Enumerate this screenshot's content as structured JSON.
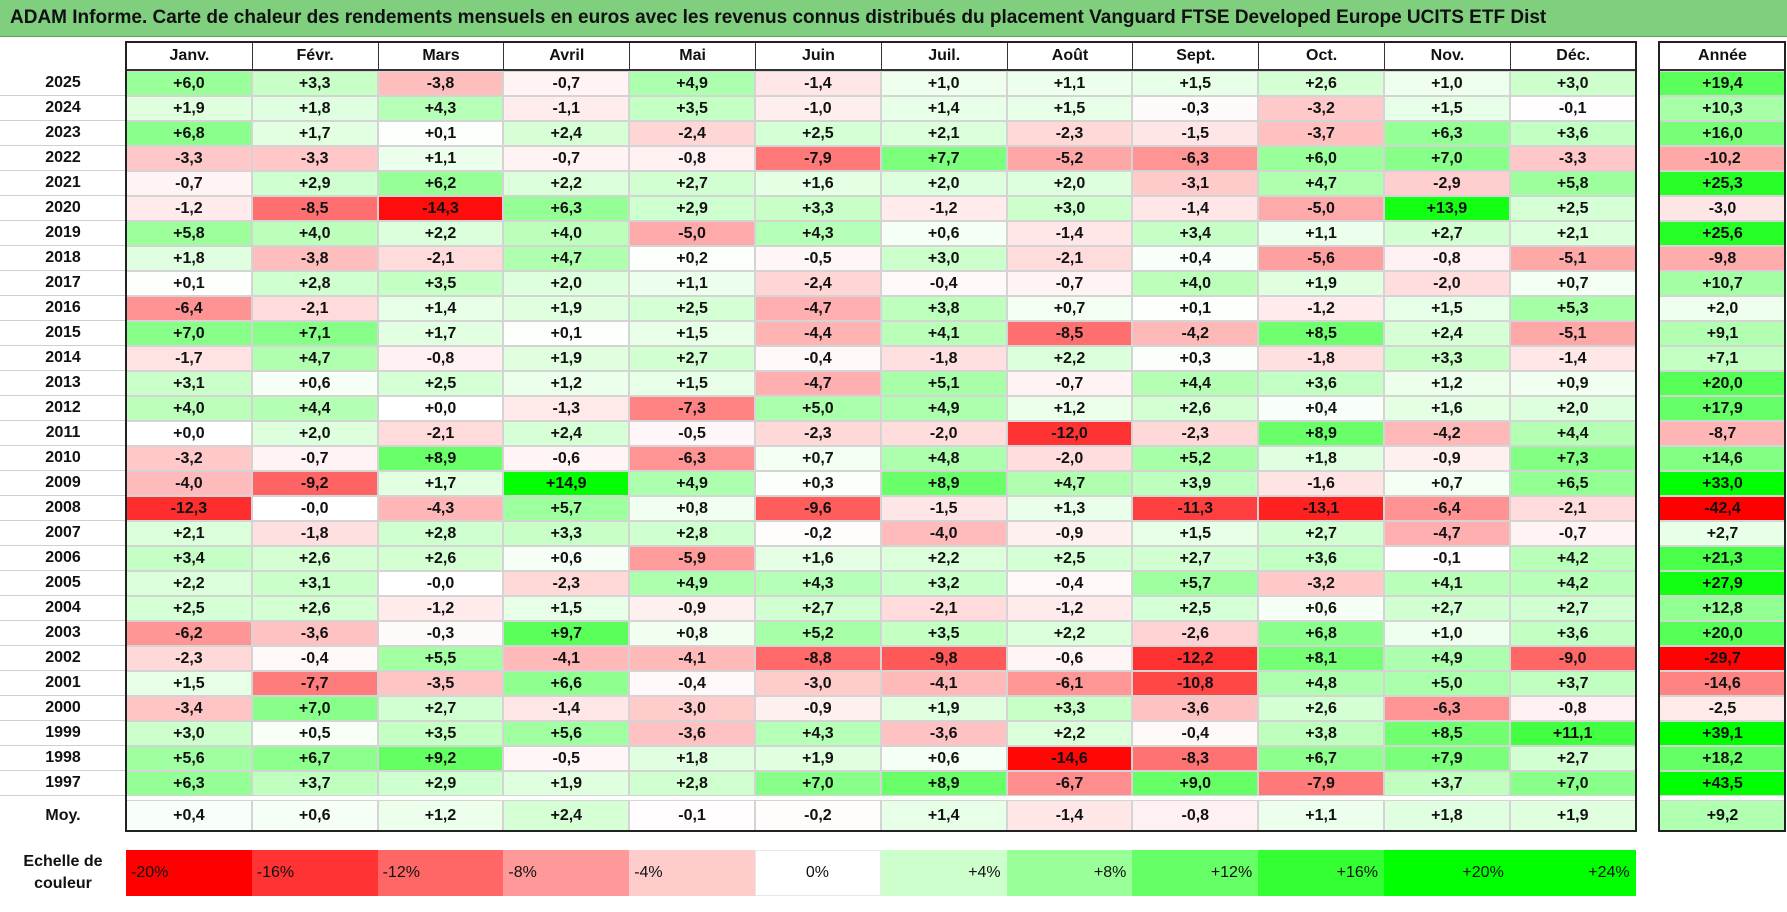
{
  "title": "ADAM Informe. Carte de chaleur des rendements mensuels en euros avec les revenus connus distribués du placement Vanguard FTSE Developed Europe UCITS ETF Dist",
  "chart_data": {
    "type": "heatmap",
    "columns": [
      "Janv.",
      "Févr.",
      "Mars",
      "Avril",
      "Mai",
      "Juin",
      "Juil.",
      "Août",
      "Sept.",
      "Oct.",
      "Nov.",
      "Déc."
    ],
    "annual_label": "Année",
    "rows": [
      {
        "year": "2025",
        "months": [
          "+6,0",
          "+3,3",
          "-3,8",
          "-0,7",
          "+4,9",
          "-1,4",
          "+1,0",
          "+1,1",
          "+1,5",
          "+2,6",
          "+1,0",
          "+3,0"
        ],
        "annual": "+19,4"
      },
      {
        "year": "2024",
        "months": [
          "+1,9",
          "+1,8",
          "+4,3",
          "-1,1",
          "+3,5",
          "-1,0",
          "+1,4",
          "+1,5",
          "-0,3",
          "-3,2",
          "+1,5",
          "-0,1"
        ],
        "annual": "+10,3"
      },
      {
        "year": "2023",
        "months": [
          "+6,8",
          "+1,7",
          "+0,1",
          "+2,4",
          "-2,4",
          "+2,5",
          "+2,1",
          "-2,3",
          "-1,5",
          "-3,7",
          "+6,3",
          "+3,6"
        ],
        "annual": "+16,0"
      },
      {
        "year": "2022",
        "months": [
          "-3,3",
          "-3,3",
          "+1,1",
          "-0,7",
          "-0,8",
          "-7,9",
          "+7,7",
          "-5,2",
          "-6,3",
          "+6,0",
          "+7,0",
          "-3,3"
        ],
        "annual": "-10,2"
      },
      {
        "year": "2021",
        "months": [
          "-0,7",
          "+2,9",
          "+6,2",
          "+2,2",
          "+2,7",
          "+1,6",
          "+2,0",
          "+2,0",
          "-3,1",
          "+4,7",
          "-2,9",
          "+5,8"
        ],
        "annual": "+25,3"
      },
      {
        "year": "2020",
        "months": [
          "-1,2",
          "-8,5",
          "-14,3",
          "+6,3",
          "+2,9",
          "+3,3",
          "-1,2",
          "+3,0",
          "-1,4",
          "-5,0",
          "+13,9",
          "+2,5"
        ],
        "annual": "-3,0"
      },
      {
        "year": "2019",
        "months": [
          "+5,8",
          "+4,0",
          "+2,2",
          "+4,0",
          "-5,0",
          "+4,3",
          "+0,6",
          "-1,4",
          "+3,4",
          "+1,1",
          "+2,7",
          "+2,1"
        ],
        "annual": "+25,6"
      },
      {
        "year": "2018",
        "months": [
          "+1,8",
          "-3,8",
          "-2,1",
          "+4,7",
          "+0,2",
          "-0,5",
          "+3,0",
          "-2,1",
          "+0,4",
          "-5,6",
          "-0,8",
          "-5,1"
        ],
        "annual": "-9,8"
      },
      {
        "year": "2017",
        "months": [
          "+0,1",
          "+2,8",
          "+3,5",
          "+2,0",
          "+1,1",
          "-2,4",
          "-0,4",
          "-0,7",
          "+4,0",
          "+1,9",
          "-2,0",
          "+0,7"
        ],
        "annual": "+10,7"
      },
      {
        "year": "2016",
        "months": [
          "-6,4",
          "-2,1",
          "+1,4",
          "+1,9",
          "+2,5",
          "-4,7",
          "+3,8",
          "+0,7",
          "+0,1",
          "-1,2",
          "+1,5",
          "+5,3"
        ],
        "annual": "+2,0"
      },
      {
        "year": "2015",
        "months": [
          "+7,0",
          "+7,1",
          "+1,7",
          "+0,1",
          "+1,5",
          "-4,4",
          "+4,1",
          "-8,5",
          "-4,2",
          "+8,5",
          "+2,4",
          "-5,1"
        ],
        "annual": "+9,1"
      },
      {
        "year": "2014",
        "months": [
          "-1,7",
          "+4,7",
          "-0,8",
          "+1,9",
          "+2,7",
          "-0,4",
          "-1,8",
          "+2,2",
          "+0,3",
          "-1,8",
          "+3,3",
          "-1,4"
        ],
        "annual": "+7,1"
      },
      {
        "year": "2013",
        "months": [
          "+3,1",
          "+0,6",
          "+2,5",
          "+1,2",
          "+1,5",
          "-4,7",
          "+5,1",
          "-0,7",
          "+4,4",
          "+3,6",
          "+1,2",
          "+0,9"
        ],
        "annual": "+20,0"
      },
      {
        "year": "2012",
        "months": [
          "+4,0",
          "+4,4",
          "+0,0",
          "-1,3",
          "-7,3",
          "+5,0",
          "+4,9",
          "+1,2",
          "+2,6",
          "+0,4",
          "+1,6",
          "+2,0"
        ],
        "annual": "+17,9"
      },
      {
        "year": "2011",
        "months": [
          "+0,0",
          "+2,0",
          "-2,1",
          "+2,4",
          "-0,5",
          "-2,3",
          "-2,0",
          "-12,0",
          "-2,3",
          "+8,9",
          "-4,2",
          "+4,4"
        ],
        "annual": "-8,7"
      },
      {
        "year": "2010",
        "months": [
          "-3,2",
          "-0,7",
          "+8,9",
          "-0,6",
          "-6,3",
          "+0,7",
          "+4,8",
          "-2,0",
          "+5,2",
          "+1,8",
          "-0,9",
          "+7,3"
        ],
        "annual": "+14,6"
      },
      {
        "year": "2009",
        "months": [
          "-4,0",
          "-9,2",
          "+1,7",
          "+14,9",
          "+4,9",
          "+0,3",
          "+8,9",
          "+4,7",
          "+3,9",
          "-1,6",
          "+0,7",
          "+6,5"
        ],
        "annual": "+33,0"
      },
      {
        "year": "2008",
        "months": [
          "-12,3",
          "-0,0",
          "-4,3",
          "+5,7",
          "+0,8",
          "-9,6",
          "-1,5",
          "+1,3",
          "-11,3",
          "-13,1",
          "-6,4",
          "-2,1"
        ],
        "annual": "-42,4"
      },
      {
        "year": "2007",
        "months": [
          "+2,1",
          "-1,8",
          "+2,8",
          "+3,3",
          "+2,8",
          "-0,2",
          "-4,0",
          "-0,9",
          "+1,5",
          "+2,7",
          "-4,7",
          "-0,7"
        ],
        "annual": "+2,7"
      },
      {
        "year": "2006",
        "months": [
          "+3,4",
          "+2,6",
          "+2,6",
          "+0,6",
          "-5,9",
          "+1,6",
          "+2,2",
          "+2,5",
          "+2,7",
          "+3,6",
          "-0,1",
          "+4,2"
        ],
        "annual": "+21,3"
      },
      {
        "year": "2005",
        "months": [
          "+2,2",
          "+3,1",
          "-0,0",
          "-2,3",
          "+4,9",
          "+4,3",
          "+3,2",
          "-0,4",
          "+5,7",
          "-3,2",
          "+4,1",
          "+4,2"
        ],
        "annual": "+27,9"
      },
      {
        "year": "2004",
        "months": [
          "+2,5",
          "+2,6",
          "-1,2",
          "+1,5",
          "-0,9",
          "+2,7",
          "-2,1",
          "-1,2",
          "+2,5",
          "+0,6",
          "+2,7",
          "+2,7"
        ],
        "annual": "+12,8"
      },
      {
        "year": "2003",
        "months": [
          "-6,2",
          "-3,6",
          "-0,3",
          "+9,7",
          "+0,8",
          "+5,2",
          "+3,5",
          "+2,2",
          "-2,6",
          "+6,8",
          "+1,0",
          "+3,6"
        ],
        "annual": "+20,0"
      },
      {
        "year": "2002",
        "months": [
          "-2,3",
          "-0,4",
          "+5,5",
          "-4,1",
          "-4,1",
          "-8,8",
          "-9,8",
          "-0,6",
          "-12,2",
          "+8,1",
          "+4,9",
          "-9,0"
        ],
        "annual": "-29,7"
      },
      {
        "year": "2001",
        "months": [
          "+1,5",
          "-7,7",
          "-3,5",
          "+6,6",
          "-0,4",
          "-3,0",
          "-4,1",
          "-6,1",
          "-10,8",
          "+4,8",
          "+5,0",
          "+3,7"
        ],
        "annual": "-14,6"
      },
      {
        "year": "2000",
        "months": [
          "-3,4",
          "+7,0",
          "+2,7",
          "-1,4",
          "-3,0",
          "-0,9",
          "+1,9",
          "+3,3",
          "-3,6",
          "+2,6",
          "-6,3",
          "-0,8"
        ],
        "annual": "-2,5"
      },
      {
        "year": "1999",
        "months": [
          "+3,0",
          "+0,5",
          "+3,5",
          "+5,6",
          "-3,6",
          "+4,3",
          "-3,6",
          "+2,2",
          "-0,4",
          "+3,8",
          "+8,5",
          "+11,1"
        ],
        "annual": "+39,1"
      },
      {
        "year": "1998",
        "months": [
          "+5,6",
          "+6,7",
          "+9,2",
          "-0,5",
          "+1,8",
          "+1,9",
          "+0,6",
          "-14,6",
          "-8,3",
          "+6,7",
          "+7,9",
          "+2,7"
        ],
        "annual": "+18,2"
      },
      {
        "year": "1997",
        "months": [
          "+6,3",
          "+3,7",
          "+2,9",
          "+1,9",
          "+2,8",
          "+7,0",
          "+8,9",
          "-6,7",
          "+9,0",
          "-7,9",
          "+3,7",
          "+7,0"
        ],
        "annual": "+43,5"
      }
    ],
    "average": {
      "label": "Moy.",
      "months": [
        "+0,4",
        "+0,6",
        "+1,2",
        "+2,4",
        "-0,1",
        "-0,2",
        "+1,4",
        "-1,4",
        "-0,8",
        "+1,1",
        "+1,8",
        "+1,9"
      ],
      "annual": "+9,2"
    },
    "scale": {
      "label_line1": "Echelle de",
      "label_line2": "couleur",
      "items": [
        {
          "label": "-20%",
          "value": -20
        },
        {
          "label": "-16%",
          "value": -16
        },
        {
          "label": "-12%",
          "value": -12
        },
        {
          "label": "-8%",
          "value": -8
        },
        {
          "label": "-4%",
          "value": -4
        },
        {
          "label": "0%",
          "value": 0
        },
        {
          "label": "+4%",
          "value": 4
        },
        {
          "label": "+8%",
          "value": 8
        },
        {
          "label": "+12%",
          "value": 12
        },
        {
          "label": "+16%",
          "value": 16
        },
        {
          "label": "+20%",
          "value": 20
        },
        {
          "label": "+24%",
          "value": 24
        }
      ]
    },
    "colors": {
      "negative": "#ff0000",
      "neutral": "#ffffff",
      "positive": "#00ff00",
      "title_band": "#7fcf7f"
    }
  }
}
